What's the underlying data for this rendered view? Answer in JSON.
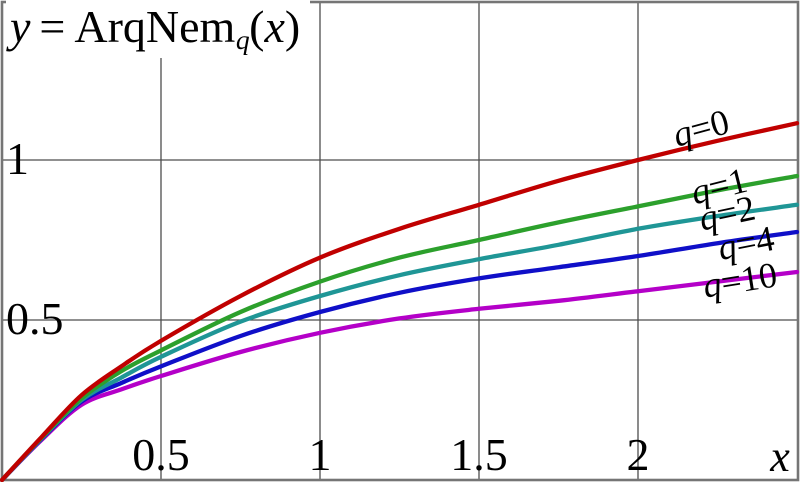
{
  "title_parts": {
    "lhs": "y",
    "equals": "=",
    "func": "ArqNem",
    "subscript": "q",
    "open_paren": "(",
    "arg": "x",
    "close_paren": ")"
  },
  "axes": {
    "x_label": "x",
    "x_ticks": [
      {
        "value": 0.5,
        "label": "0.5"
      },
      {
        "value": 1,
        "label": "1"
      },
      {
        "value": 1.5,
        "label": "1.5"
      },
      {
        "value": 2,
        "label": "2"
      }
    ],
    "y_ticks": [
      {
        "value": 0.5,
        "label": "0.5"
      },
      {
        "value": 1,
        "label": "1"
      }
    ]
  },
  "theme": {
    "background": "#ffffff",
    "grid_color": "#4d4d4d",
    "frame_color": "#757575",
    "text_color": "#000000"
  },
  "chart_data": {
    "type": "line",
    "title": "y = ArqNem_q(x)",
    "xlabel": "x",
    "ylabel": "y",
    "xlim": [
      0,
      2.5
    ],
    "ylim": [
      0,
      1.5
    ],
    "grid": true,
    "legend": "inline curve labels",
    "x": [
      0,
      0.125,
      0.25,
      0.375,
      0.5,
      0.75,
      1,
      1.25,
      1.5,
      1.75,
      2,
      2.25,
      2.5
    ],
    "series": [
      {
        "name": "q=0",
        "q": 0,
        "color": "#c00000",
        "values": [
          0,
          0.135,
          0.265,
          0.355,
          0.435,
          0.575,
          0.695,
          0.785,
          0.86,
          0.935,
          1.0,
          1.06,
          1.115
        ]
      },
      {
        "name": "q=1",
        "q": 1,
        "color": "#2ca02c",
        "values": [
          0,
          0.133,
          0.255,
          0.34,
          0.405,
          0.525,
          0.62,
          0.695,
          0.75,
          0.805,
          0.855,
          0.905,
          0.95
        ]
      },
      {
        "name": "q=2",
        "q": 2,
        "color": "#1f9696",
        "values": [
          0,
          0.131,
          0.25,
          0.32,
          0.385,
          0.495,
          0.575,
          0.64,
          0.69,
          0.735,
          0.785,
          0.825,
          0.86
        ]
      },
      {
        "name": "q=4",
        "q": 4,
        "color": "#0f0fc8",
        "values": [
          0,
          0.129,
          0.245,
          0.303,
          0.355,
          0.45,
          0.525,
          0.585,
          0.63,
          0.665,
          0.7,
          0.74,
          0.775
        ]
      },
      {
        "name": "q=10",
        "q": 10,
        "color": "#b400c8",
        "values": [
          0,
          0.126,
          0.235,
          0.283,
          0.325,
          0.4,
          0.46,
          0.505,
          0.535,
          0.56,
          0.59,
          0.62,
          0.65
        ]
      }
    ]
  }
}
